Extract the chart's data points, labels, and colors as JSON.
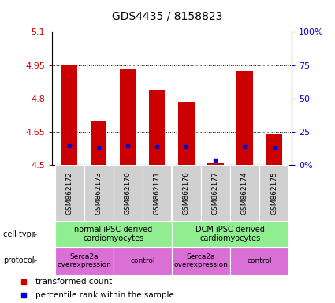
{
  "title": "GDS4435 / 8158823",
  "samples": [
    "GSM862172",
    "GSM862173",
    "GSM862170",
    "GSM862171",
    "GSM862176",
    "GSM862177",
    "GSM862174",
    "GSM862175"
  ],
  "red_values": [
    4.95,
    4.7,
    4.93,
    4.84,
    4.785,
    4.51,
    4.925,
    4.64
  ],
  "blue_percentiles": [
    15,
    13,
    15,
    14,
    14,
    4,
    14,
    13
  ],
  "ymin": 4.5,
  "ymax": 5.1,
  "yticks_red": [
    4.5,
    4.65,
    4.8,
    4.95,
    5.1
  ],
  "yticks_blue": [
    0,
    25,
    50,
    75,
    100
  ],
  "cell_type_labels": [
    "normal iPSC-derived\ncardiomyocytes",
    "DCM iPSC-derived\ncardiomyocytes"
  ],
  "cell_type_color": "#90ee90",
  "protocol_labels": [
    "Serca2a\noverexpression",
    "control",
    "Serca2a\noverexpression",
    "control"
  ],
  "protocol_color": "#da70d6",
  "legend_red": "transformed count",
  "legend_blue": "percentile rank within the sample",
  "bar_color_red": "#cc0000",
  "bar_color_blue": "#0000cc",
  "bar_bottom": 4.5,
  "bar_width": 0.55,
  "sample_label_bg": "#d0d0d0",
  "cell_type_label": "cell type",
  "protocol_label": "protocol"
}
